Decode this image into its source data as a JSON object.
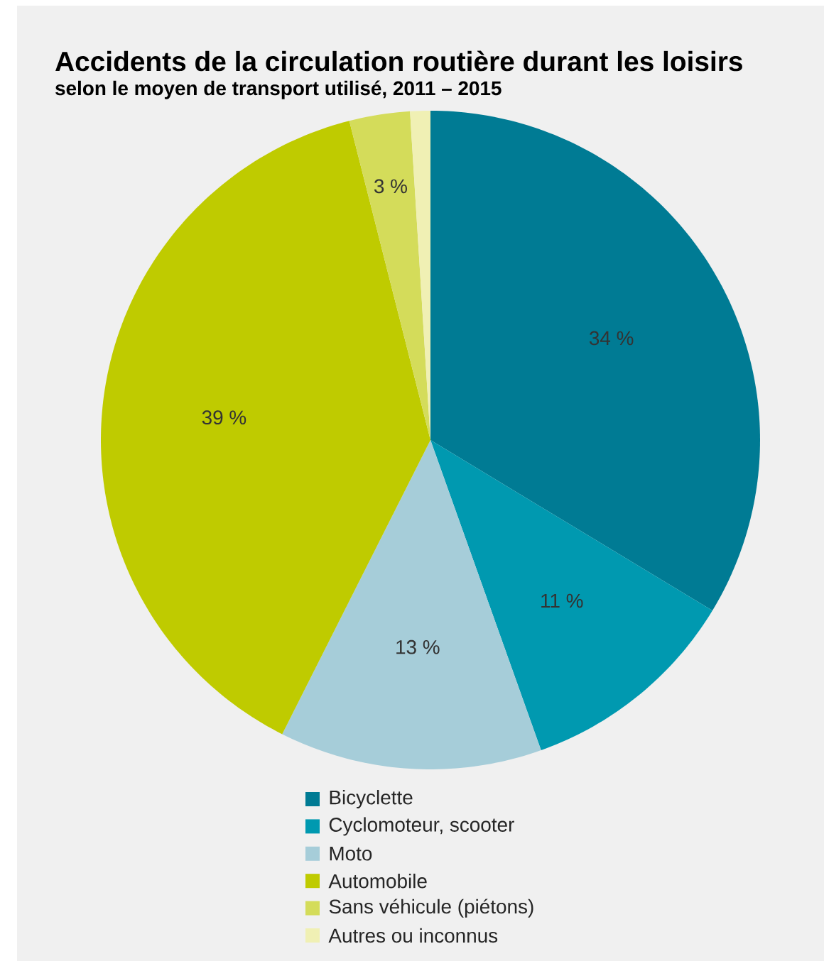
{
  "chart_data": {
    "type": "pie",
    "title": "Accidents de la circulation routière durant les loisirs",
    "subtitle": "selon le moyen de transport utilisé, 2011 – 2015",
    "categories": [
      "Bicyclette",
      "Cyclomoteur, scooter",
      "Moto",
      "Automobile",
      "Sans véhicule (piétons)",
      "Autres ou inconnus"
    ],
    "values": [
      34,
      11,
      13,
      39,
      3,
      1
    ],
    "value_labels": [
      "34 %",
      "11 %",
      "13 %",
      "39 %",
      "3 %",
      null
    ],
    "colors": [
      "#007b94",
      "#0099b0",
      "#a6cdd9",
      "#bfcb00",
      "#d4dc5a",
      "#f0f0b4"
    ],
    "legend": "bottom"
  }
}
